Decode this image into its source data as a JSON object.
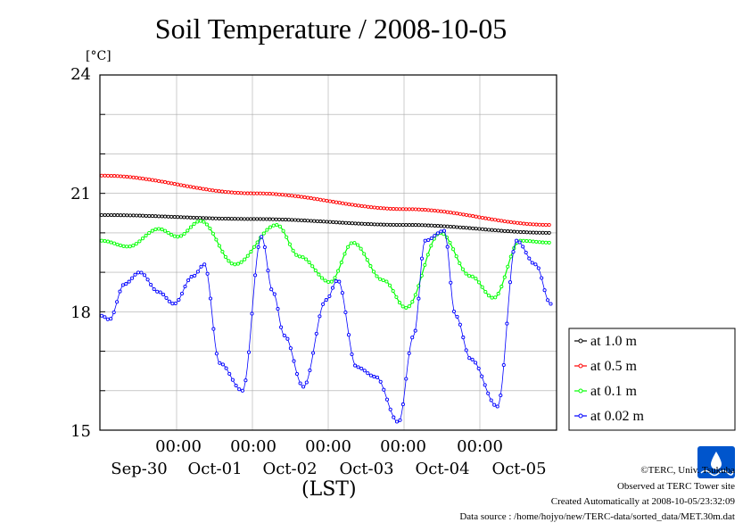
{
  "chart_data": {
    "type": "line",
    "title": "Soil Temperature / 2008-10-05",
    "ylabel": "[°C]",
    "xlabel": "(LST)",
    "ylim": [
      15,
      24
    ],
    "y_ticks": [
      "24",
      "21",
      "18",
      "15"
    ],
    "x_time_ticks": [
      "00:00",
      "00:00",
      "00:00",
      "00:00",
      "00:00"
    ],
    "x_date_ticks": [
      "Sep-30",
      "Oct-01",
      "Oct-02",
      "Oct-03",
      "Oct-04",
      "Oct-05"
    ],
    "grid": true,
    "legend_position": "right",
    "series": [
      {
        "name": "at 1.0 m",
        "color": "#000000",
        "x": [
          0,
          2,
          4,
          5.9
        ],
        "values": [
          20.45,
          20.35,
          20.2,
          20.0
        ]
      },
      {
        "name": "at 0.5 m",
        "color": "#ff0000",
        "x": [
          0,
          2,
          4,
          5.9
        ],
        "values": [
          21.45,
          21.0,
          20.6,
          20.2
        ]
      },
      {
        "name": "at 0.1 m",
        "color": "#00ff00",
        "x": [
          0,
          0.35,
          0.75,
          1.0,
          1.3,
          1.75,
          2.3,
          2.6,
          3.0,
          3.3,
          3.7,
          4.0,
          4.45,
          4.85,
          5.15,
          5.5,
          5.9
        ],
        "values": [
          19.8,
          19.65,
          20.1,
          19.9,
          20.3,
          19.2,
          20.2,
          19.4,
          18.75,
          19.75,
          18.8,
          18.1,
          20.0,
          18.9,
          18.35,
          19.8,
          19.75
        ]
      },
      {
        "name": "at 0.02 m",
        "color": "#0000ff",
        "x": [
          0,
          0.1,
          0.3,
          0.5,
          0.75,
          0.95,
          1.2,
          1.35,
          1.55,
          1.85,
          2.1,
          2.25,
          2.4,
          2.65,
          2.95,
          3.1,
          3.35,
          3.6,
          3.9,
          4.1,
          4.25,
          4.5,
          4.65,
          4.85,
          5.2,
          5.45,
          5.7,
          5.9
        ],
        "values": [
          17.9,
          17.8,
          18.7,
          19.0,
          18.5,
          18.2,
          18.9,
          19.2,
          16.7,
          16.0,
          19.9,
          18.5,
          17.4,
          16.1,
          18.3,
          18.8,
          16.6,
          16.35,
          15.2,
          17.4,
          19.8,
          20.05,
          17.9,
          16.8,
          15.6,
          19.8,
          19.2,
          18.2
        ]
      }
    ]
  },
  "footer": {
    "credit": "©TERC, Univ. Tsukuba",
    "site": "Observed at TERC Tower site",
    "created": "Created Automatically at 2008-10-05/23:32:09",
    "source": "Data source : /home/hojyo/new/TERC-data/sorted_data/MET.30m.dat"
  },
  "logo": {
    "text": "TERC",
    "color": "#0055cc"
  }
}
